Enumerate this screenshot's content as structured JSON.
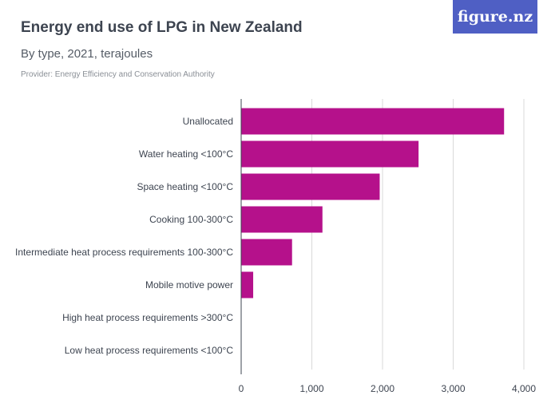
{
  "header": {
    "title": "Energy end use of LPG in New Zealand",
    "subtitle": "By type, 2021, terajoules",
    "provider": "Provider: Energy Efficiency and Conservation Authority",
    "logo_text": "figure.nz"
  },
  "colors": {
    "bar": "#b5118b",
    "grid": "#d9d9d9",
    "logo_bg": "#4f5fc4"
  },
  "chart_data": {
    "type": "bar",
    "orientation": "horizontal",
    "categories": [
      "Unallocated",
      "Water heating <100°C",
      "Space heating <100°C",
      "Cooking 100-300°C",
      "Intermediate heat process requirements 100-300°C",
      "Mobile motive power",
      "High heat process requirements >300°C",
      "Low heat process requirements <100°C"
    ],
    "values": [
      3720,
      2510,
      1960,
      1150,
      720,
      170,
      0,
      0
    ],
    "xlim": [
      0,
      4000
    ],
    "ticks": [
      0,
      1000,
      2000,
      3000,
      4000
    ],
    "tick_labels": [
      "0",
      "1,000",
      "2,000",
      "3,000",
      "4,000"
    ],
    "grid": true
  }
}
